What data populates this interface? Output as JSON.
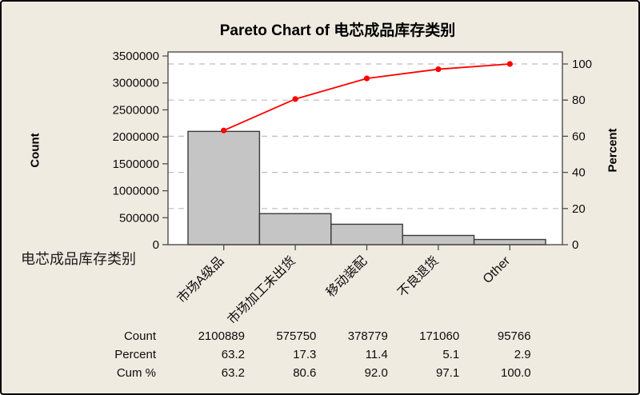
{
  "window": {
    "background": "#F0EBE1",
    "border_color": "#000000"
  },
  "title": "Pareto Chart of 电芯成品库存类别",
  "axes": {
    "left_label": "Count",
    "right_label": "Percent",
    "x_label": "电芯成品库存类别"
  },
  "chart_data": {
    "type": "pareto",
    "title": "Pareto Chart of 电芯成品库存类别",
    "categories": [
      "市场A级品",
      "市场加工未出货",
      "移动装配",
      "不良退货",
      "Other"
    ],
    "series": [
      {
        "name": "Count",
        "type": "bar",
        "axis": "left",
        "values": [
          2100889,
          575750,
          378779,
          171060,
          95766
        ]
      },
      {
        "name": "Cum %",
        "type": "line",
        "axis": "right",
        "values": [
          63.2,
          80.6,
          92.0,
          97.1,
          100.0
        ]
      }
    ],
    "percent_of_total": [
      63.2,
      17.3,
      11.4,
      5.1,
      2.9
    ],
    "left_axis": {
      "label": "Count",
      "min": 0,
      "max": 3500000,
      "tick_step": 500000
    },
    "right_axis": {
      "label": "Percent",
      "min": 0,
      "max": 100,
      "tick_step": 20
    },
    "x_axis_label": "电芯成品库存类别",
    "grid": {
      "horizontal_dashed_at_right_ticks": true
    },
    "legend": "none",
    "colors": {
      "plot_bg": "#FFFFFF",
      "bar_fill": "#C5C5C5",
      "bar_edge": "#3A3A3A",
      "frame": "#4D4D4D",
      "grid": "#BDBDBD",
      "line": "#FF0000",
      "marker": "#FF0000",
      "text": "#000000"
    }
  },
  "table": {
    "rows": [
      {
        "label": "Count",
        "values": [
          "2100889",
          "575750",
          "378779",
          "171060",
          "95766"
        ]
      },
      {
        "label": "Percent",
        "values": [
          "63.2",
          "17.3",
          "11.4",
          "5.1",
          "2.9"
        ]
      },
      {
        "label": "Cum %",
        "values": [
          "63.2",
          "80.6",
          "92.0",
          "97.1",
          "100.0"
        ]
      }
    ]
  }
}
